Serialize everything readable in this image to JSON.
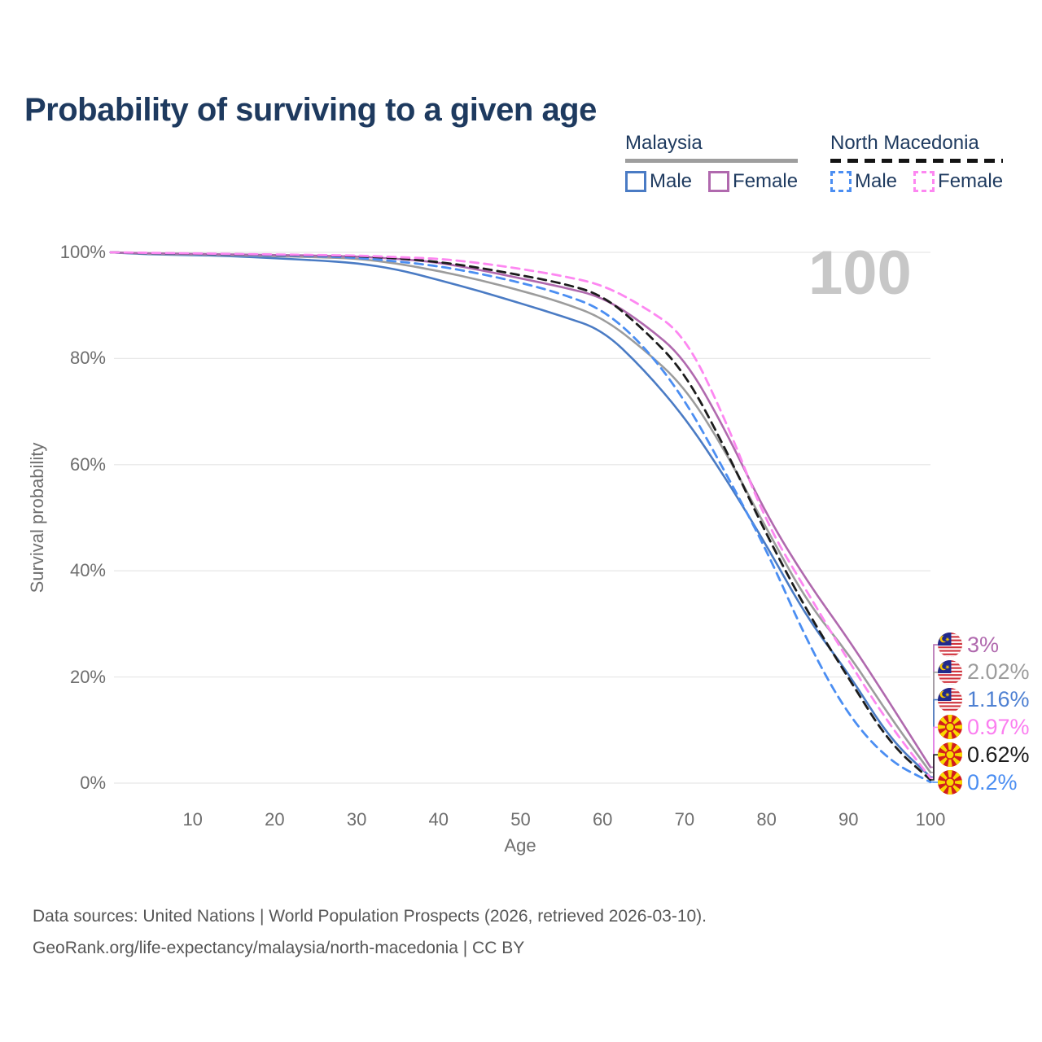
{
  "title": "Probability of surviving to a given age",
  "watermark": "100",
  "legend": {
    "groups": [
      {
        "label": "Malaysia",
        "underline_style": "solid",
        "underline_color": "#9e9e9e",
        "items": [
          {
            "label": "Male",
            "color": "#4a7bc4",
            "dashed": false
          },
          {
            "label": "Female",
            "color": "#b069ae",
            "dashed": false
          }
        ]
      },
      {
        "label": "North Macedonia",
        "underline_style": "dashed",
        "underline_color": "#141414",
        "items": [
          {
            "label": "Male",
            "color": "#4b8ef2",
            "dashed": true
          },
          {
            "label": "Female",
            "color": "#fd87f1",
            "dashed": true
          }
        ]
      }
    ]
  },
  "chart_data": {
    "type": "line",
    "title": "Probability of surviving to a given age",
    "xlabel": "Age",
    "ylabel": "Survival probability",
    "xlim": [
      0,
      100
    ],
    "ylim": [
      0,
      100
    ],
    "x_ticks": [
      10,
      20,
      30,
      40,
      50,
      60,
      70,
      80,
      90,
      100
    ],
    "y_ticks": [
      "0%",
      "20%",
      "40%",
      "60%",
      "80%",
      "100%"
    ],
    "grid": "horizontal",
    "legend_position": "top-right",
    "x": [
      0,
      5,
      10,
      15,
      20,
      25,
      30,
      35,
      40,
      45,
      50,
      55,
      60,
      65,
      70,
      75,
      80,
      85,
      90,
      95,
      100
    ],
    "series": [
      {
        "name": "Malaysia Male",
        "country": "MY",
        "sex": "male",
        "color": "#4a7bc4",
        "dashed": false,
        "values": [
          100,
          99.6,
          99.5,
          99.3,
          98.9,
          98.5,
          98.0,
          96.8,
          94.8,
          92.7,
          90.4,
          88.0,
          85.4,
          78.0,
          69.0,
          57.5,
          44.8,
          31.0,
          20.7,
          8.4,
          1.16
        ],
        "end_label": "1.16%",
        "end_label_color": "#4e80d2"
      },
      {
        "name": "Malaysia Total",
        "country": "MY",
        "sex": "both",
        "color": "#9c9c9c",
        "dashed": false,
        "values": [
          100,
          99.7,
          99.6,
          99.45,
          99.3,
          99.1,
          98.85,
          97.9,
          96.5,
          94.8,
          92.8,
          90.6,
          87.7,
          81.8,
          74.7,
          62.5,
          47.9,
          34.0,
          24.4,
          12.6,
          2.02
        ],
        "end_label": "2.02%",
        "end_label_color": "#9c9c9c"
      },
      {
        "name": "Malaysia Female",
        "country": "MY",
        "sex": "female",
        "color": "#b069ae",
        "dashed": false,
        "values": [
          100,
          99.8,
          99.7,
          99.6,
          99.5,
          99.4,
          99.2,
          98.8,
          98.1,
          96.7,
          95.1,
          93.5,
          91.6,
          86.6,
          80.1,
          66.5,
          50.5,
          37.9,
          27.1,
          15.2,
          3.0
        ],
        "end_label": "3%",
        "end_label_color": "#b069ae"
      },
      {
        "name": "North Macedonia Male",
        "country": "MK",
        "sex": "male",
        "color": "#4b8ef2",
        "dashed": true,
        "values": [
          100,
          99.8,
          99.7,
          99.6,
          99.45,
          99.3,
          99.0,
          98.3,
          97.4,
          96.0,
          94.3,
          92.2,
          89.3,
          82.5,
          72.4,
          58.5,
          44.0,
          26.5,
          12.6,
          4.1,
          0.2
        ],
        "end_label": "0.2%",
        "end_label_color": "#4b8ef2"
      },
      {
        "name": "North Macedonia Total",
        "country": "MK",
        "sex": "both",
        "color": "#1c1c1c",
        "dashed": true,
        "values": [
          100,
          99.85,
          99.75,
          99.65,
          99.55,
          99.45,
          99.3,
          98.9,
          98.2,
          97.1,
          95.7,
          94.2,
          92.0,
          85.5,
          77.5,
          63.0,
          46.8,
          32.2,
          19.8,
          7.5,
          0.62
        ],
        "end_label": "0.62%",
        "end_label_color": "#1c1c1c"
      },
      {
        "name": "North Macedonia Female",
        "country": "MK",
        "sex": "female",
        "color": "#fd87f1",
        "dashed": true,
        "values": [
          100,
          99.9,
          99.8,
          99.7,
          99.6,
          99.5,
          99.4,
          99.1,
          98.8,
          98.0,
          96.9,
          95.6,
          93.9,
          89.8,
          84.5,
          68.5,
          48.9,
          35.9,
          23.0,
          11.0,
          0.97
        ],
        "end_label": "0.97%",
        "end_label_color": "#fb7ef0"
      }
    ],
    "end_labels_order": [
      "3%",
      "2.02%",
      "1.16%",
      "0.97%",
      "0.62%",
      "0.2%"
    ]
  },
  "footer": {
    "line1": "Data sources: United Nations | World Population Prospects (2026, retrieved 2026-03-10).",
    "line2": "GeoRank.org/life-expectancy/malaysia/north-macedonia | CC BY"
  }
}
